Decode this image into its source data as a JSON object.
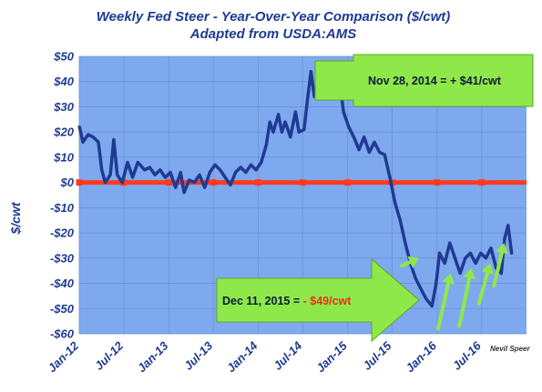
{
  "chart_data": {
    "type": "line",
    "title": "Weekly Fed Steer - Year-Over-Year Comparison ($/cwt)",
    "subtitle": "Adapted from USDA:AMS",
    "ylabel": "$/cwt",
    "credit": "Nevil Speer",
    "x_range": [
      "2012-01-01",
      "2016-12-31"
    ],
    "ylim": [
      -60,
      50
    ],
    "y_ticks": [
      {
        "value": 50,
        "label": "$50"
      },
      {
        "value": 40,
        "label": "$40"
      },
      {
        "value": 30,
        "label": "$30"
      },
      {
        "value": 20,
        "label": "$20"
      },
      {
        "value": 10,
        "label": "$10"
      },
      {
        "value": 0,
        "label": "$0"
      },
      {
        "value": -10,
        "label": "-$10"
      },
      {
        "value": -20,
        "label": "-$20"
      },
      {
        "value": -30,
        "label": "-$30"
      },
      {
        "value": -40,
        "label": "-$40"
      },
      {
        "value": -50,
        "label": "-$50"
      },
      {
        "value": -60,
        "label": "-$60"
      }
    ],
    "x_ticks": [
      {
        "date": "2012-01-01",
        "label": "Jan-12"
      },
      {
        "date": "2012-07-01",
        "label": "Jul-12"
      },
      {
        "date": "2013-01-01",
        "label": "Jan-13"
      },
      {
        "date": "2013-07-01",
        "label": "Jul-13"
      },
      {
        "date": "2014-01-01",
        "label": "Jan-14"
      },
      {
        "date": "2014-07-01",
        "label": "Jul-14"
      },
      {
        "date": "2015-01-01",
        "label": "Jan-15"
      },
      {
        "date": "2015-07-01",
        "label": "Jul-15"
      },
      {
        "date": "2016-01-01",
        "label": "Jan-16"
      },
      {
        "date": "2016-07-01",
        "label": "Jul-16"
      }
    ],
    "grid": true,
    "colors": {
      "plot_bg": "#7fa9ee",
      "line": "#1f3a93",
      "zero_line": "#ff3b1f",
      "arrow": "#8fe84a",
      "text": "#1f3a93"
    },
    "series": [
      {
        "points": [
          {
            "x": "2012-01-02",
            "y": 22
          },
          {
            "x": "2012-01-16",
            "y": 16
          },
          {
            "x": "2012-02-06",
            "y": 19
          },
          {
            "x": "2012-02-27",
            "y": 18
          },
          {
            "x": "2012-03-19",
            "y": 16
          },
          {
            "x": "2012-04-02",
            "y": 5
          },
          {
            "x": "2012-04-16",
            "y": 0
          },
          {
            "x": "2012-05-07",
            "y": 3
          },
          {
            "x": "2012-05-21",
            "y": 17
          },
          {
            "x": "2012-06-04",
            "y": 3
          },
          {
            "x": "2012-06-25",
            "y": 0
          },
          {
            "x": "2012-07-16",
            "y": 8
          },
          {
            "x": "2012-08-06",
            "y": 2
          },
          {
            "x": "2012-08-27",
            "y": 8
          },
          {
            "x": "2012-09-24",
            "y": 5
          },
          {
            "x": "2012-10-15",
            "y": 6
          },
          {
            "x": "2012-11-05",
            "y": 3
          },
          {
            "x": "2012-11-26",
            "y": 5
          },
          {
            "x": "2012-12-17",
            "y": 2
          },
          {
            "x": "2013-01-07",
            "y": 4
          },
          {
            "x": "2013-01-28",
            "y": -2
          },
          {
            "x": "2013-02-18",
            "y": 4
          },
          {
            "x": "2013-03-04",
            "y": -4
          },
          {
            "x": "2013-03-25",
            "y": 1
          },
          {
            "x": "2013-04-15",
            "y": 0
          },
          {
            "x": "2013-05-06",
            "y": 3
          },
          {
            "x": "2013-05-27",
            "y": -2
          },
          {
            "x": "2013-06-17",
            "y": 4
          },
          {
            "x": "2013-07-08",
            "y": 7
          },
          {
            "x": "2013-07-29",
            "y": 5
          },
          {
            "x": "2013-08-19",
            "y": 2
          },
          {
            "x": "2013-09-09",
            "y": -1
          },
          {
            "x": "2013-09-30",
            "y": 4
          },
          {
            "x": "2013-10-21",
            "y": 6
          },
          {
            "x": "2013-11-11",
            "y": 4
          },
          {
            "x": "2013-12-02",
            "y": 7
          },
          {
            "x": "2013-12-23",
            "y": 5
          },
          {
            "x": "2014-01-13",
            "y": 8
          },
          {
            "x": "2014-02-03",
            "y": 15
          },
          {
            "x": "2014-02-17",
            "y": 24
          },
          {
            "x": "2014-03-03",
            "y": 20
          },
          {
            "x": "2014-03-24",
            "y": 27
          },
          {
            "x": "2014-04-07",
            "y": 20
          },
          {
            "x": "2014-04-21",
            "y": 24
          },
          {
            "x": "2014-05-12",
            "y": 18
          },
          {
            "x": "2014-06-02",
            "y": 28
          },
          {
            "x": "2014-06-16",
            "y": 20
          },
          {
            "x": "2014-07-07",
            "y": 21
          },
          {
            "x": "2014-07-21",
            "y": 33
          },
          {
            "x": "2014-08-04",
            "y": 44
          },
          {
            "x": "2014-08-18",
            "y": 34
          },
          {
            "x": "2014-09-01",
            "y": 40
          },
          {
            "x": "2014-09-22",
            "y": 34
          },
          {
            "x": "2014-10-13",
            "y": 38
          },
          {
            "x": "2014-11-03",
            "y": 36
          },
          {
            "x": "2014-11-28",
            "y": 41
          },
          {
            "x": "2014-12-15",
            "y": 28
          },
          {
            "x": "2015-01-05",
            "y": 22
          },
          {
            "x": "2015-01-26",
            "y": 18
          },
          {
            "x": "2015-02-16",
            "y": 13
          },
          {
            "x": "2015-03-09",
            "y": 18
          },
          {
            "x": "2015-03-30",
            "y": 12
          },
          {
            "x": "2015-04-20",
            "y": 16
          },
          {
            "x": "2015-05-11",
            "y": 12
          },
          {
            "x": "2015-06-01",
            "y": 11
          },
          {
            "x": "2015-06-22",
            "y": 2
          },
          {
            "x": "2015-07-13",
            "y": -8
          },
          {
            "x": "2015-08-03",
            "y": -15
          },
          {
            "x": "2015-08-24",
            "y": -24
          },
          {
            "x": "2015-09-14",
            "y": -32
          },
          {
            "x": "2015-10-05",
            "y": -38
          },
          {
            "x": "2015-10-26",
            "y": -42
          },
          {
            "x": "2015-11-16",
            "y": -46
          },
          {
            "x": "2015-12-11",
            "y": -49
          },
          {
            "x": "2015-12-28",
            "y": -40
          },
          {
            "x": "2016-01-11",
            "y": -28
          },
          {
            "x": "2016-02-01",
            "y": -32
          },
          {
            "x": "2016-02-22",
            "y": -24
          },
          {
            "x": "2016-03-14",
            "y": -30
          },
          {
            "x": "2016-04-04",
            "y": -36
          },
          {
            "x": "2016-04-25",
            "y": -30
          },
          {
            "x": "2016-05-16",
            "y": -28
          },
          {
            "x": "2016-06-06",
            "y": -32
          },
          {
            "x": "2016-06-27",
            "y": -28
          },
          {
            "x": "2016-07-18",
            "y": -30
          },
          {
            "x": "2016-08-08",
            "y": -26
          },
          {
            "x": "2016-08-29",
            "y": -34
          },
          {
            "x": "2016-09-19",
            "y": -36
          },
          {
            "x": "2016-10-03",
            "y": -22
          },
          {
            "x": "2016-10-17",
            "y": -17
          },
          {
            "x": "2016-10-31",
            "y": -28
          }
        ]
      }
    ],
    "annotations": [
      {
        "text": "Nov 28, 2014 = + $41/cwt",
        "date": "2014-11-28",
        "value": 41
      },
      {
        "text_prefix": "Dec 11, 2015 = ",
        "text_highlight": "- $49/cwt",
        "date": "2015-12-11",
        "value": -49
      }
    ]
  }
}
